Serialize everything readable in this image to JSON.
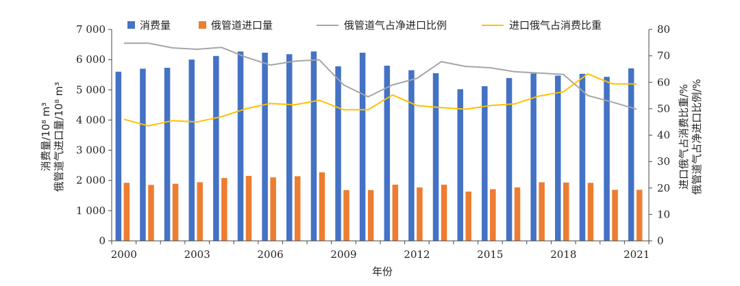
{
  "chart_data": {
    "type": "bar",
    "x_title": "年份",
    "y_left_title": [
      "消费量/10⁸ m³",
      "俄管道气进口量/10⁸ m³"
    ],
    "y_right_title": [
      "进口俄气占消费比重/%",
      "俄管道气占净进口比例/%"
    ],
    "y_left_range": [
      0,
      7000
    ],
    "y_left_ticks": [
      "0",
      "1 000",
      "2 000",
      "3 000",
      "4 000",
      "5 000",
      "6 000",
      "7 000"
    ],
    "y_right_range": [
      0,
      80
    ],
    "y_right_ticks": [
      "0",
      "10",
      "20",
      "30",
      "40",
      "50",
      "60",
      "70",
      "80"
    ],
    "x_tick_labels": [
      "2000",
      "2003",
      "2006",
      "2009",
      "2012",
      "2015",
      "2018",
      "2021"
    ],
    "categories": [
      "2000",
      "2001",
      "2002",
      "2003",
      "2004",
      "2005",
      "2006",
      "2007",
      "2008",
      "2009",
      "2010",
      "2011",
      "2012",
      "2013",
      "2014",
      "2015",
      "2016",
      "2017",
      "2018",
      "2019",
      "2020",
      "2021"
    ],
    "series": [
      {
        "name": "消费量",
        "type": "bar",
        "axis": "left",
        "color": "#4472C4",
        "values": [
          5600,
          5700,
          5730,
          6000,
          6120,
          6270,
          6230,
          6180,
          6270,
          5780,
          6230,
          5800,
          5650,
          5550,
          5020,
          5120,
          5390,
          5540,
          5470,
          5530,
          5430,
          5710
        ]
      },
      {
        "name": "俄管道进口量",
        "type": "bar",
        "axis": "left",
        "color": "#ED7D31",
        "values": [
          1920,
          1850,
          1890,
          1940,
          2080,
          2150,
          2100,
          2140,
          2270,
          1680,
          1680,
          1860,
          1770,
          1860,
          1630,
          1710,
          1770,
          1940,
          1930,
          1920,
          1690,
          1690
        ]
      },
      {
        "name": "俄管道气占净进口比例",
        "type": "line",
        "axis": "right",
        "color": "#A5A5A5",
        "values": [
          74.8,
          74.8,
          73,
          72.5,
          73.2,
          69.5,
          66.5,
          68,
          68.5,
          59,
          54.5,
          59,
          61.5,
          67.8,
          66,
          65.5,
          64,
          63.5,
          63,
          55,
          52.5,
          49.8
        ]
      },
      {
        "name": "进口俄气占消费比重",
        "type": "line",
        "axis": "right",
        "color": "#FFC000",
        "values": [
          46,
          43.5,
          45.5,
          45,
          47,
          50,
          52,
          51.5,
          53.2,
          49.6,
          49.6,
          55.2,
          51.2,
          50.4,
          49.8,
          51.2,
          51.8,
          54.8,
          56.4,
          63.2,
          59.4,
          59.4
        ]
      }
    ]
  }
}
